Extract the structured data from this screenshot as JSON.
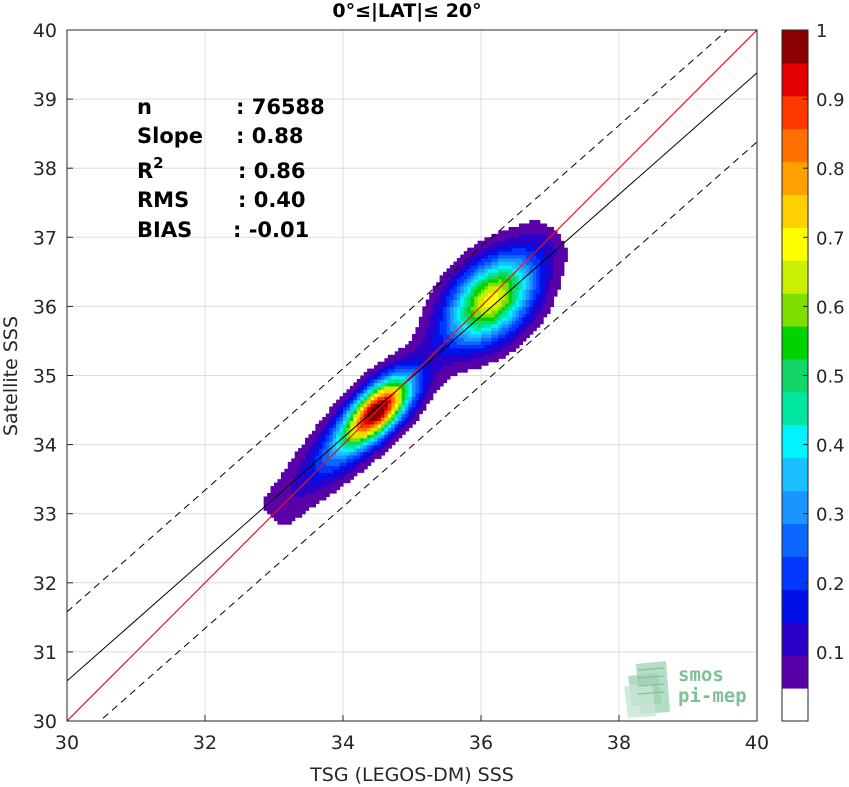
{
  "chart_data": {
    "type": "heatmap",
    "title": "0°≤|LAT|≤ 20°",
    "xlabel": "TSG (LEGOS-DM) SSS",
    "ylabel": "Satellite SSS",
    "xlim": [
      30,
      40
    ],
    "ylim": [
      30,
      40
    ],
    "xticks": [
      "30",
      "32",
      "34",
      "36",
      "38",
      "40"
    ],
    "yticks": [
      "30",
      "31",
      "32",
      "33",
      "34",
      "35",
      "36",
      "37",
      "38",
      "39",
      "40"
    ],
    "grid": true,
    "stats": [
      {
        "label": "n",
        "value": ": 76588"
      },
      {
        "label": "Slope",
        "value": ": 0.88"
      },
      {
        "label": "R",
        "sup": "2",
        "value": ": 0.86"
      },
      {
        "label": "RMS",
        "value": ": 0.40"
      },
      {
        "label": "BIAS",
        "value": ": -0.01"
      }
    ],
    "lines": {
      "one_to_one": {
        "slope": 1,
        "intercept": 0,
        "color": "#e8141a"
      },
      "fit": {
        "slope": 0.88,
        "intercept": 4.18,
        "color": "#000000"
      },
      "envelope_offset": 1.0
    },
    "density_peaks": [
      {
        "x": 34.5,
        "y": 34.5,
        "density": 1.0
      },
      {
        "x": 36.15,
        "y": 36.1,
        "density": 0.65
      }
    ],
    "colorbar": {
      "range": [
        0,
        1
      ],
      "ticks": [
        "0.1",
        "0.2",
        "0.3",
        "0.4",
        "0.5",
        "0.6",
        "0.7",
        "0.8",
        "0.9",
        "1"
      ],
      "levels": 21,
      "colors": [
        "#ffffff",
        "#5a00a8",
        "#2a00c8",
        "#0010e6",
        "#0038ff",
        "#0c66ff",
        "#1a94ff",
        "#19bfff",
        "#00f4ff",
        "#00e8a0",
        "#13d668",
        "#00d400",
        "#7ee000",
        "#c8f000",
        "#ffff00",
        "#ffd000",
        "#ffa000",
        "#ff7000",
        "#ff3800",
        "#e40000",
        "#8b0000"
      ]
    }
  },
  "logo": {
    "line1": "smos",
    "line2": "pi-mep"
  }
}
